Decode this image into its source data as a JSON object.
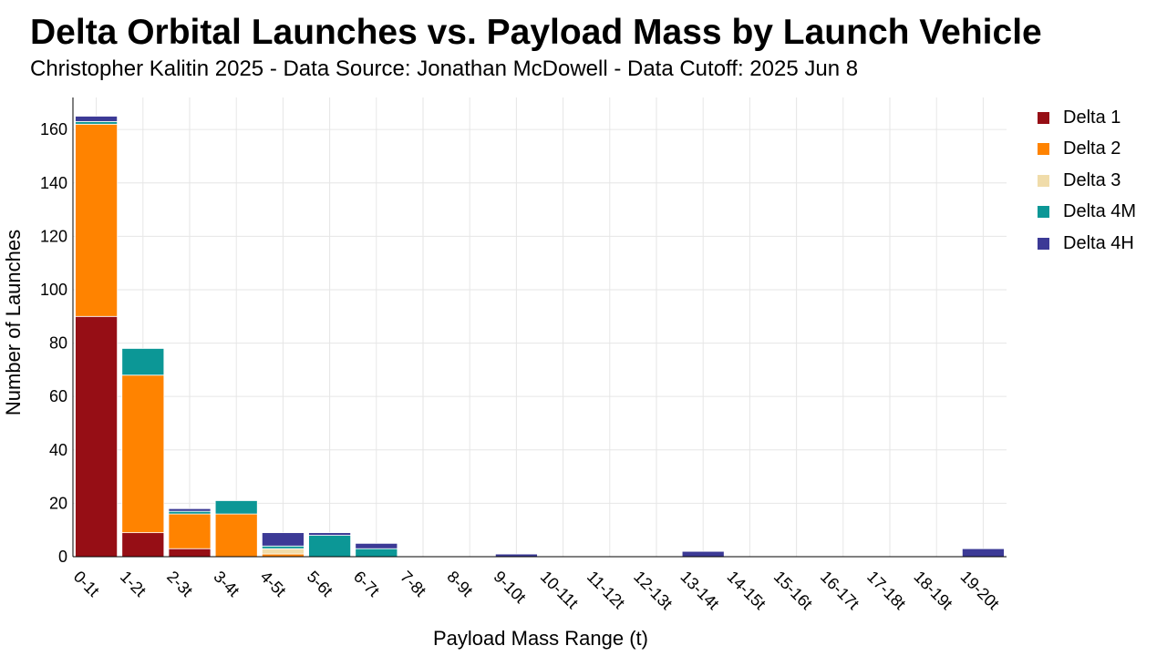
{
  "title": "Delta Orbital Launches vs. Payload Mass by Launch Vehicle",
  "subtitle": "Christopher Kalitin 2025 - Data Source: Jonathan McDowell - Data Cutoff: 2025 Jun 8",
  "chart_data": {
    "type": "bar",
    "stacked": true,
    "xlabel": "Payload Mass Range (t)",
    "ylabel": "Number of Launches",
    "ylim": [
      0,
      172
    ],
    "yticks": [
      0,
      20,
      40,
      60,
      80,
      100,
      120,
      140,
      160
    ],
    "grid": true,
    "legend_position": "right",
    "categories": [
      "0-1t",
      "1-2t",
      "2-3t",
      "3-4t",
      "4-5t",
      "5-6t",
      "6-7t",
      "7-8t",
      "8-9t",
      "9-10t",
      "10-11t",
      "11-12t",
      "12-13t",
      "13-14t",
      "14-15t",
      "15-16t",
      "16-17t",
      "17-18t",
      "18-19t",
      "19-20t"
    ],
    "series": [
      {
        "name": "Delta 1",
        "color": "#960e15",
        "values": [
          90,
          9,
          3,
          0,
          0,
          0,
          0,
          0,
          0,
          0,
          0,
          0,
          0,
          0,
          0,
          0,
          0,
          0,
          0,
          0
        ]
      },
      {
        "name": "Delta 2",
        "color": "#ff8300",
        "values": [
          72,
          59,
          13,
          16,
          1,
          0,
          0,
          0,
          0,
          0,
          0,
          0,
          0,
          0,
          0,
          0,
          0,
          0,
          0,
          0
        ]
      },
      {
        "name": "Delta 3",
        "color": "#f0dcaa",
        "values": [
          0,
          0,
          0,
          0,
          2,
          0,
          0,
          0,
          0,
          0,
          0,
          0,
          0,
          0,
          0,
          0,
          0,
          0,
          0,
          0
        ]
      },
      {
        "name": "Delta 4M",
        "color": "#0c9796",
        "values": [
          1,
          10,
          1,
          5,
          1,
          8,
          3,
          0,
          0,
          0,
          0,
          0,
          0,
          0,
          0,
          0,
          0,
          0,
          0,
          0
        ]
      },
      {
        "name": "Delta 4H",
        "color": "#3c3a96",
        "values": [
          2,
          0,
          1,
          0,
          5,
          1,
          2,
          0,
          0,
          1,
          0,
          0,
          0,
          2,
          0,
          0,
          0,
          0,
          0,
          3
        ]
      }
    ]
  }
}
